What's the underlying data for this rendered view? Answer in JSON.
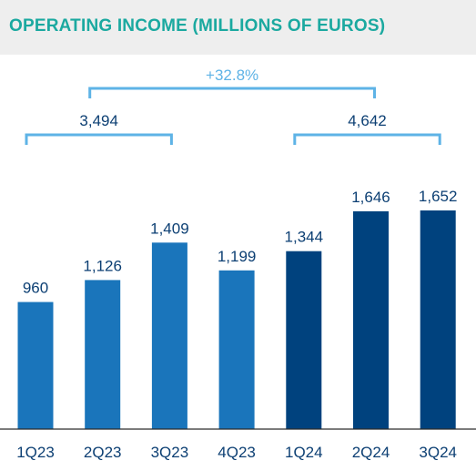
{
  "chart_data": {
    "type": "bar",
    "title": "OPERATING INCOME (MILLIONS OF EUROS)",
    "categories": [
      "1Q23",
      "2Q23",
      "3Q23",
      "4Q23",
      "1Q24",
      "2Q24",
      "3Q24"
    ],
    "values": [
      960,
      1126,
      1409,
      1199,
      1344,
      1646,
      1652
    ],
    "data_labels": [
      "960",
      "1,126",
      "1,409",
      "1,199",
      "1,344",
      "1,646",
      "1,652"
    ],
    "bar_colors": [
      "#1a75bb",
      "#1a75bb",
      "#1a75bb",
      "#1a75bb",
      "#00427e",
      "#00427e",
      "#00427e"
    ],
    "ylim": [
      0,
      1652
    ],
    "grid": false,
    "legend": "none",
    "annotations": {
      "groups": [
        {
          "label": "3,494",
          "categories": [
            "1Q23",
            "2Q23",
            "3Q23"
          ]
        },
        {
          "label": "4,642",
          "categories": [
            "1Q24",
            "2Q24",
            "3Q24"
          ]
        }
      ],
      "comparison": {
        "label": "+32.8%",
        "from": "2Q23",
        "to": "2Q24"
      }
    }
  },
  "colors": {
    "title": "#1ba9a0",
    "header_band": "#eeeeee",
    "label_text": "#0c3f73",
    "bracket": "#5eb3e6",
    "comparison_text": "#5eb3e6",
    "axis": "#2c2c2c"
  }
}
